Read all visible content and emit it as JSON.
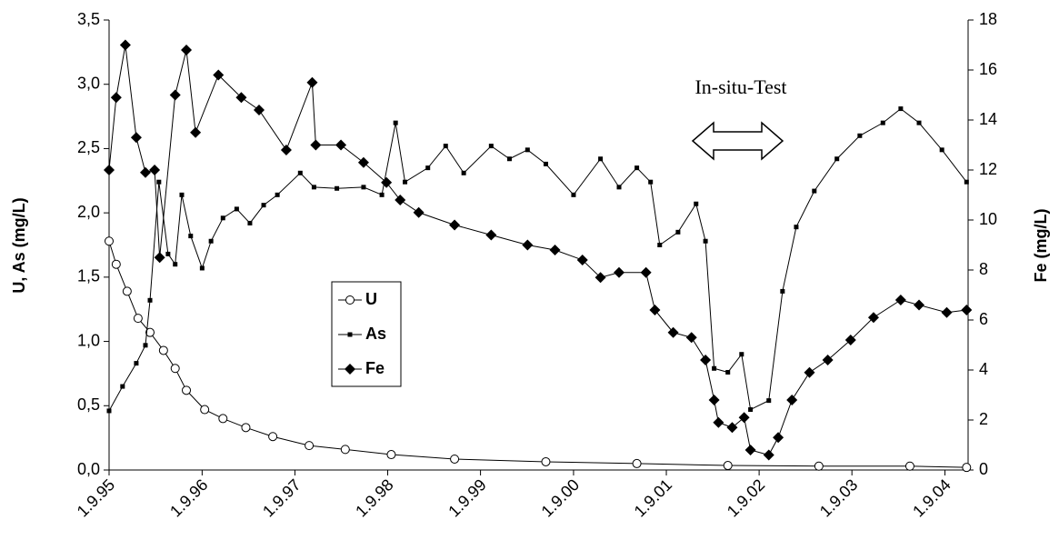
{
  "chart_data": {
    "type": "line",
    "annotation": "In-situ-Test",
    "ylabel": "U, As (mg/L)",
    "y2label": "Fe (mg/L)",
    "xlim": [
      "1995-09-01",
      "2004-12-01"
    ],
    "xticks": [
      {
        "value": "1995-09-01",
        "label": "1.9.95"
      },
      {
        "value": "1996-09-01",
        "label": "1.9.96"
      },
      {
        "value": "1997-09-01",
        "label": "1.9.97"
      },
      {
        "value": "1998-09-01",
        "label": "1.9.98"
      },
      {
        "value": "1999-09-01",
        "label": "1.9.99"
      },
      {
        "value": "2000-09-01",
        "label": "1.9.00"
      },
      {
        "value": "2001-09-01",
        "label": "1.9.01"
      },
      {
        "value": "2002-09-01",
        "label": "1.9.02"
      },
      {
        "value": "2003-09-01",
        "label": "1.9.03"
      },
      {
        "value": "2004-09-01",
        "label": "1.9.04"
      }
    ],
    "ylim": [
      0,
      3.5
    ],
    "yticks": [
      {
        "value": 0,
        "label": "0,0"
      },
      {
        "value": 0.5,
        "label": "0,5"
      },
      {
        "value": 1,
        "label": "1,0"
      },
      {
        "value": 1.5,
        "label": "1,5"
      },
      {
        "value": 2,
        "label": "2,0"
      },
      {
        "value": 2.5,
        "label": "2,5"
      },
      {
        "value": 3,
        "label": "3,0"
      },
      {
        "value": 3.5,
        "label": "3,5"
      }
    ],
    "y2lim": [
      0,
      18
    ],
    "y2ticks": [
      0,
      2,
      4,
      6,
      8,
      10,
      12,
      14,
      16,
      18
    ],
    "series": [
      {
        "name": "U",
        "color": "#000000",
        "marker": "circle-open",
        "x": [
          "1995-09-01",
          "1995-09-29",
          "1995-11-11",
          "1995-12-24",
          "1996-02-09",
          "1996-04-02",
          "1996-05-18",
          "1996-07-01",
          "1996-09-11",
          "1996-11-22",
          "1997-02-20",
          "1997-06-06",
          "1997-10-27",
          "1998-03-18",
          "1998-09-15",
          "1999-05-22",
          "2000-05-15",
          "2001-05-08",
          "2002-05-01",
          "2003-04-24",
          "2004-04-16",
          "2004-11-25"
        ],
        "values": [
          1.78,
          1.6,
          1.39,
          1.18,
          1.07,
          0.93,
          0.79,
          0.62,
          0.47,
          0.4,
          0.33,
          0.26,
          0.19,
          0.16,
          0.12,
          0.085,
          0.064,
          0.05,
          0.035,
          0.03,
          0.03,
          0.02
        ]
      },
      {
        "name": "As",
        "color": "#000000",
        "marker": "square",
        "x": [
          "1995-09-01",
          "1995-10-24",
          "1995-12-17",
          "1996-01-22",
          "1996-02-09",
          "1996-03-15",
          "1996-04-20",
          "1996-05-18",
          "1996-06-13",
          "1996-07-18",
          "1996-09-01",
          "1996-10-06",
          "1996-11-22",
          "1997-01-15",
          "1997-03-08",
          "1997-05-01",
          "1997-06-24",
          "1997-09-22",
          "1997-11-15",
          "1998-02-13",
          "1998-05-29",
          "1998-08-09",
          "1998-10-02",
          "1998-11-08",
          "1999-02-06",
          "1999-04-17",
          "1999-06-27",
          "1999-10-13",
          "1999-12-24",
          "2000-03-04",
          "2000-05-15",
          "2000-09-01",
          "2000-12-16",
          "2001-02-27",
          "2001-05-08",
          "2001-07-01",
          "2001-08-06",
          "2001-10-17",
          "2001-12-27",
          "2002-02-02",
          "2002-03-08",
          "2002-05-01",
          "2002-06-24",
          "2002-07-29",
          "2002-10-09",
          "2002-12-02",
          "2003-01-25",
          "2003-04-06",
          "2003-07-04",
          "2003-10-02",
          "2004-01-01",
          "2004-03-11",
          "2004-05-22",
          "2004-08-20",
          "2004-11-25"
        ],
        "values": [
          0.46,
          0.65,
          0.83,
          0.97,
          1.32,
          2.24,
          1.68,
          1.6,
          2.14,
          1.82,
          1.57,
          1.78,
          1.96,
          2.03,
          1.92,
          2.06,
          2.14,
          2.31,
          2.2,
          2.19,
          2.2,
          2.14,
          2.7,
          2.24,
          2.35,
          2.52,
          2.31,
          2.52,
          2.42,
          2.49,
          2.38,
          2.14,
          2.42,
          2.2,
          2.35,
          2.24,
          1.75,
          1.85,
          2.07,
          1.78,
          0.79,
          0.76,
          0.9,
          0.47,
          0.54,
          1.39,
          1.89,
          2.17,
          2.42,
          2.6,
          2.7,
          2.81,
          2.7,
          2.49,
          2.24
        ]
      },
      {
        "name": "Fe",
        "color": "#000000",
        "marker": "diamond",
        "axis": "y2",
        "x": [
          "1995-09-01",
          "1995-09-29",
          "1995-11-04",
          "1995-12-17",
          "1996-01-22",
          "1996-02-27",
          "1996-03-18",
          "1996-05-18",
          "1996-07-01",
          "1996-08-06",
          "1996-11-04",
          "1997-02-02",
          "1997-04-13",
          "1997-07-29",
          "1997-11-08",
          "1997-11-22",
          "1998-03-01",
          "1998-05-29",
          "1998-08-27",
          "1998-10-20",
          "1999-01-01",
          "1999-05-22",
          "1999-10-13",
          "2000-03-04",
          "2000-06-20",
          "2000-10-06",
          "2000-12-16",
          "2001-02-27",
          "2001-06-13",
          "2001-07-18",
          "2001-09-28",
          "2001-12-09",
          "2002-02-02",
          "2002-03-08",
          "2002-03-25",
          "2002-05-18",
          "2002-07-04",
          "2002-07-29",
          "2002-10-09",
          "2002-11-15",
          "2003-01-08",
          "2003-03-18",
          "2003-05-29",
          "2003-08-27",
          "2003-11-25",
          "2004-03-11",
          "2004-05-22",
          "2004-09-08",
          "2004-11-25"
        ],
        "values": [
          12.0,
          14.9,
          17.0,
          13.3,
          11.9,
          12.0,
          8.5,
          15.0,
          16.8,
          13.5,
          15.8,
          14.9,
          14.4,
          12.8,
          15.5,
          13.0,
          13.0,
          12.3,
          11.5,
          10.8,
          10.3,
          9.8,
          9.4,
          9.0,
          8.8,
          8.4,
          7.7,
          7.9,
          7.9,
          6.4,
          5.5,
          5.3,
          4.4,
          2.8,
          1.9,
          1.7,
          2.1,
          0.8,
          0.6,
          1.3,
          2.8,
          3.9,
          4.4,
          5.2,
          6.1,
          6.8,
          6.6,
          6.3,
          6.4
        ]
      }
    ]
  }
}
